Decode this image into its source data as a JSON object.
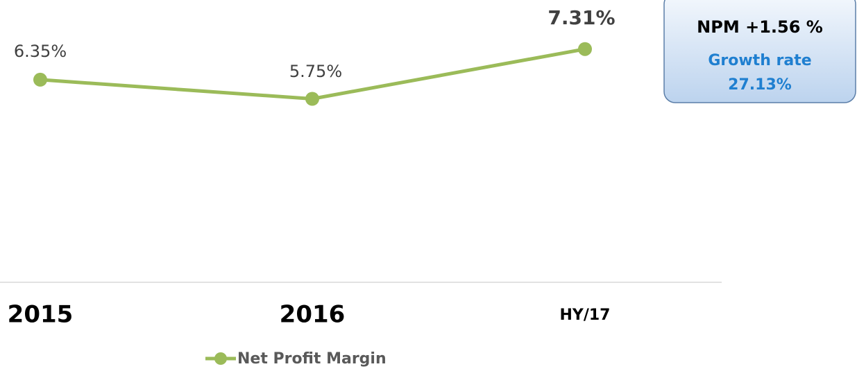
{
  "chart_data": {
    "type": "line",
    "categories": [
      "2015",
      "2016",
      "HY/17"
    ],
    "series": [
      {
        "name": "Net Profit Margin",
        "color": "#9bbb59",
        "values": [
          6.35,
          5.75,
          7.31
        ],
        "value_labels": [
          "6.35%",
          "5.75%",
          "7.31%"
        ]
      }
    ],
    "ylim": [
      0,
      8
    ],
    "annotations": [
      "NPM +1.56 %",
      "Growth rate",
      "27.13%"
    ]
  }
}
